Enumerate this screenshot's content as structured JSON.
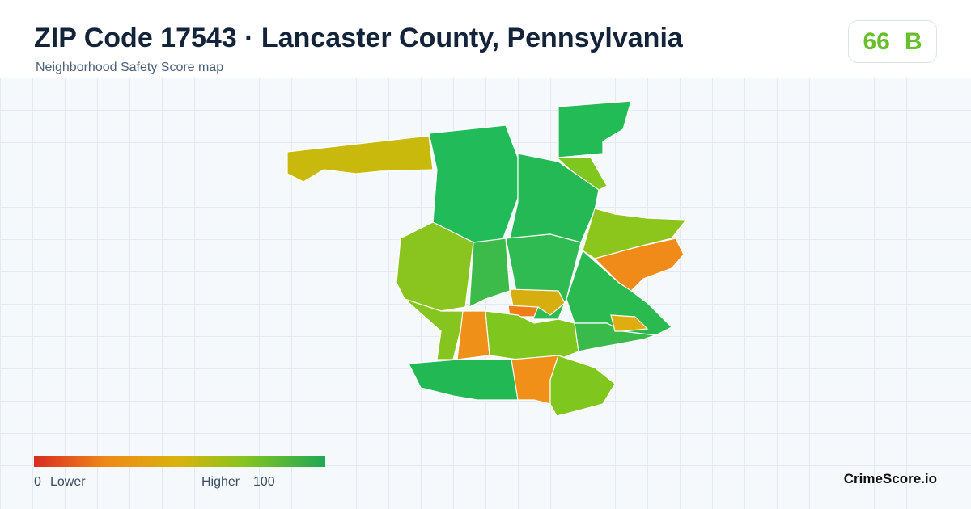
{
  "header": {
    "title": "ZIP Code 17543 · Lancaster County, Pennsylvania",
    "subtitle": "Neighborhood Safety Score map"
  },
  "score": {
    "value": "66",
    "grade": "B"
  },
  "legend": {
    "min": "0",
    "low_label": "Lower",
    "high_label": "Higher",
    "max": "100"
  },
  "brand": "CrimeScore.io"
}
